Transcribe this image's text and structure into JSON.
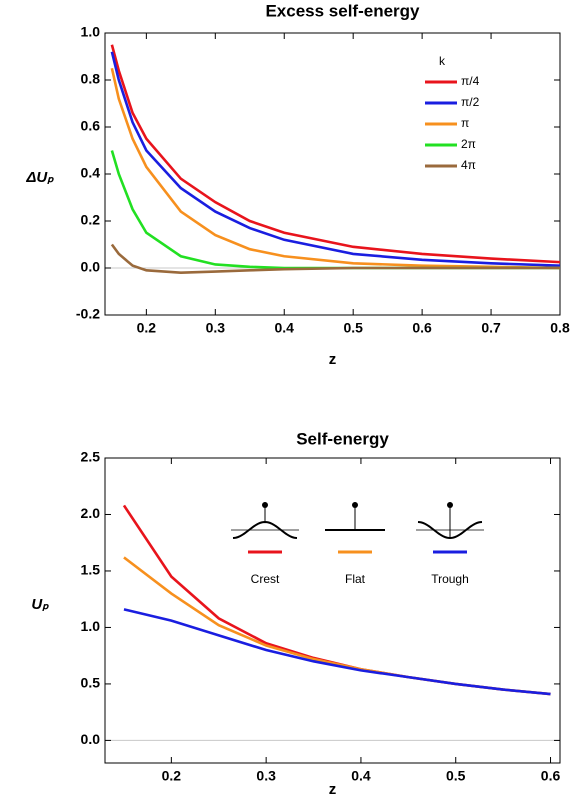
{
  "chart_data": [
    {
      "type": "line",
      "title": "Excess self-energy",
      "xlabel": "z",
      "ylabel": "ΔUₚ",
      "legend_title": "k",
      "x": [
        0.15,
        0.16,
        0.18,
        0.2,
        0.25,
        0.3,
        0.35,
        0.4,
        0.5,
        0.6,
        0.7,
        0.8
      ],
      "series": [
        {
          "name": "π/4",
          "color": "#e8141c",
          "values": [
            0.95,
            0.84,
            0.66,
            0.55,
            0.38,
            0.28,
            0.2,
            0.15,
            0.09,
            0.06,
            0.04,
            0.025
          ]
        },
        {
          "name": "π/2",
          "color": "#1a1ee0",
          "values": [
            0.92,
            0.8,
            0.62,
            0.5,
            0.34,
            0.24,
            0.17,
            0.12,
            0.06,
            0.035,
            0.02,
            0.01
          ]
        },
        {
          "name": "π",
          "color": "#f7901e",
          "values": [
            0.85,
            0.72,
            0.55,
            0.43,
            0.24,
            0.14,
            0.08,
            0.05,
            0.02,
            0.01,
            0.005,
            0
          ]
        },
        {
          "name": "2π",
          "color": "#22e022",
          "values": [
            0.5,
            0.4,
            0.25,
            0.15,
            0.05,
            0.015,
            0.005,
            0,
            0,
            0,
            0,
            0
          ]
        },
        {
          "name": "4π",
          "color": "#9a6a3c",
          "values": [
            0.1,
            0.06,
            0.01,
            -0.01,
            -0.02,
            -0.015,
            -0.01,
            -0.005,
            0,
            0,
            0,
            0
          ]
        }
      ],
      "xlim": [
        0.14,
        0.8
      ],
      "ylim": [
        -0.2,
        1.0
      ],
      "xticks": [
        0.2,
        0.3,
        0.4,
        0.5,
        0.6,
        0.7,
        0.8
      ],
      "yticks": [
        -0.2,
        {
          "value": 0,
          "label": "0.0"
        },
        0.2,
        0.4,
        0.6,
        0.8,
        {
          "value": 1,
          "label": "1.0"
        }
      ]
    },
    {
      "type": "line",
      "title": "Self-energy",
      "xlabel": "z",
      "ylabel": "Uₚ",
      "x": [
        0.15,
        0.2,
        0.25,
        0.3,
        0.35,
        0.4,
        0.45,
        0.5,
        0.55,
        0.6
      ],
      "series": [
        {
          "name": "Crest",
          "color": "#e8141c",
          "values": [
            2.08,
            1.45,
            1.08,
            0.86,
            0.73,
            0.63,
            0.56,
            0.5,
            0.45,
            0.41
          ]
        },
        {
          "name": "Flat",
          "color": "#f7901e",
          "values": [
            1.62,
            1.3,
            1.02,
            0.84,
            0.72,
            0.63,
            0.56,
            0.5,
            0.45,
            0.41
          ]
        },
        {
          "name": "Trough",
          "color": "#1a1ee0",
          "values": [
            1.16,
            1.06,
            0.93,
            0.8,
            0.7,
            0.62,
            0.56,
            0.5,
            0.45,
            0.41
          ]
        }
      ],
      "xlim": [
        0.13,
        0.61
      ],
      "ylim": [
        -0.2,
        2.5
      ],
      "xticks": [
        0.2,
        0.3,
        0.4,
        0.5,
        0.6
      ],
      "yticks": [
        {
          "value": 0,
          "label": "0.0"
        },
        0.5,
        {
          "value": 1,
          "label": "1.0"
        },
        1.5,
        {
          "value": 2,
          "label": "2.0"
        },
        2.5
      ]
    }
  ]
}
